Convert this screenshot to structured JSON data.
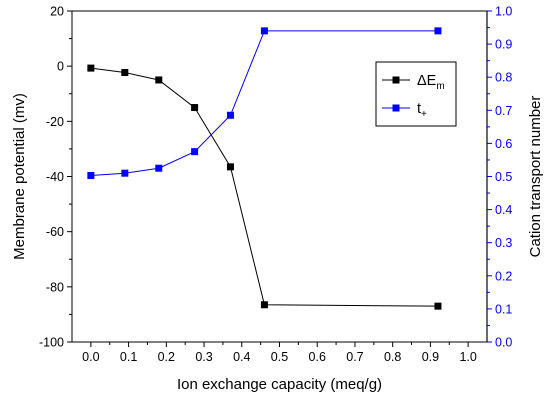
{
  "chart_data": {
    "type": "line",
    "xlabel": "Ion exchange capacity (meq/g)",
    "ylabel": "Membrane potential (mv)",
    "y2label": "Cation transport number",
    "xlim": [
      -0.05,
      1.05
    ],
    "ylim": [
      -100,
      20
    ],
    "y2lim": [
      0,
      1.0
    ],
    "xticks": [
      "0.0",
      "0.1",
      "0.2",
      "0.3",
      "0.4",
      "0.5",
      "0.6",
      "0.7",
      "0.8",
      "0.9",
      "1.0"
    ],
    "yticks": [
      "-100",
      "-80",
      "-60",
      "-40",
      "-20",
      "0",
      "20"
    ],
    "y2ticks": [
      "0.0",
      "0.1",
      "0.2",
      "0.3",
      "0.4",
      "0.5",
      "0.6",
      "0.7",
      "0.8",
      "0.9",
      "1.0"
    ],
    "grid": false,
    "legend_position": "top-right",
    "series": [
      {
        "name": "ΔE",
        "name_sub": "m",
        "axis": "left",
        "color": "#000000",
        "marker": "square",
        "x": [
          0.0,
          0.09,
          0.18,
          0.275,
          0.37,
          0.46,
          0.92
        ],
        "y": [
          -0.7,
          -2.3,
          -5,
          -15,
          -36.5,
          -86.5,
          -87
        ]
      },
      {
        "name": "t",
        "name_sub": "+",
        "axis": "right",
        "color": "#0000ff",
        "marker": "square",
        "x": [
          0.0,
          0.09,
          0.18,
          0.275,
          0.37,
          0.46,
          0.92
        ],
        "y": [
          0.503,
          0.51,
          0.525,
          0.575,
          0.685,
          0.94,
          0.94
        ]
      }
    ]
  }
}
